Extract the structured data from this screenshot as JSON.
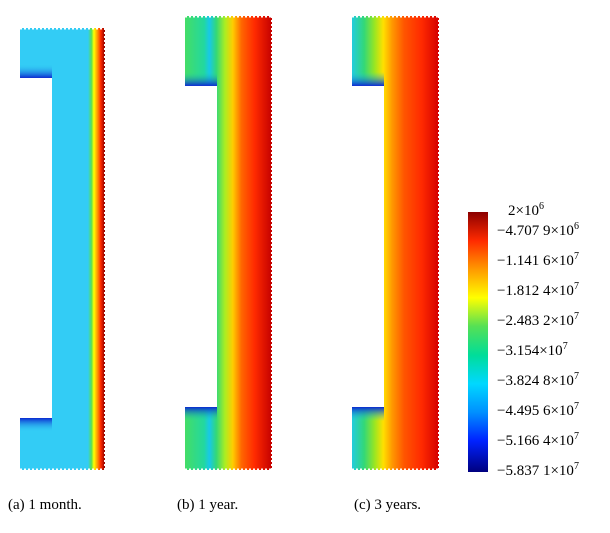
{
  "panels": [
    {
      "caption": "(a) 1 month."
    },
    {
      "caption": "(b) 1 year."
    },
    {
      "caption": "(c) 3 years."
    }
  ],
  "colorbar": {
    "labels": [
      {
        "mantissa": "2",
        "exp": "6"
      },
      {
        "mantissa": "−4.707 9",
        "exp": "6"
      },
      {
        "mantissa": "−1.141 6",
        "exp": "7"
      },
      {
        "mantissa": "−1.812 4",
        "exp": "7"
      },
      {
        "mantissa": "−2.483 2",
        "exp": "7"
      },
      {
        "mantissa": "−3.154",
        "exp": "7"
      },
      {
        "mantissa": "−3.824 8",
        "exp": "7"
      },
      {
        "mantissa": "−4.495 6",
        "exp": "7"
      },
      {
        "mantissa": "−5.166 4",
        "exp": "7"
      },
      {
        "mantissa": "−5.837 1",
        "exp": "7"
      }
    ],
    "colors": [
      "#8b0000",
      "#ff2a00",
      "#ff9900",
      "#ffff00",
      "#55e055",
      "#00dd99",
      "#00d8ff",
      "#0090ff",
      "#0022ff",
      "#00007f"
    ]
  }
}
